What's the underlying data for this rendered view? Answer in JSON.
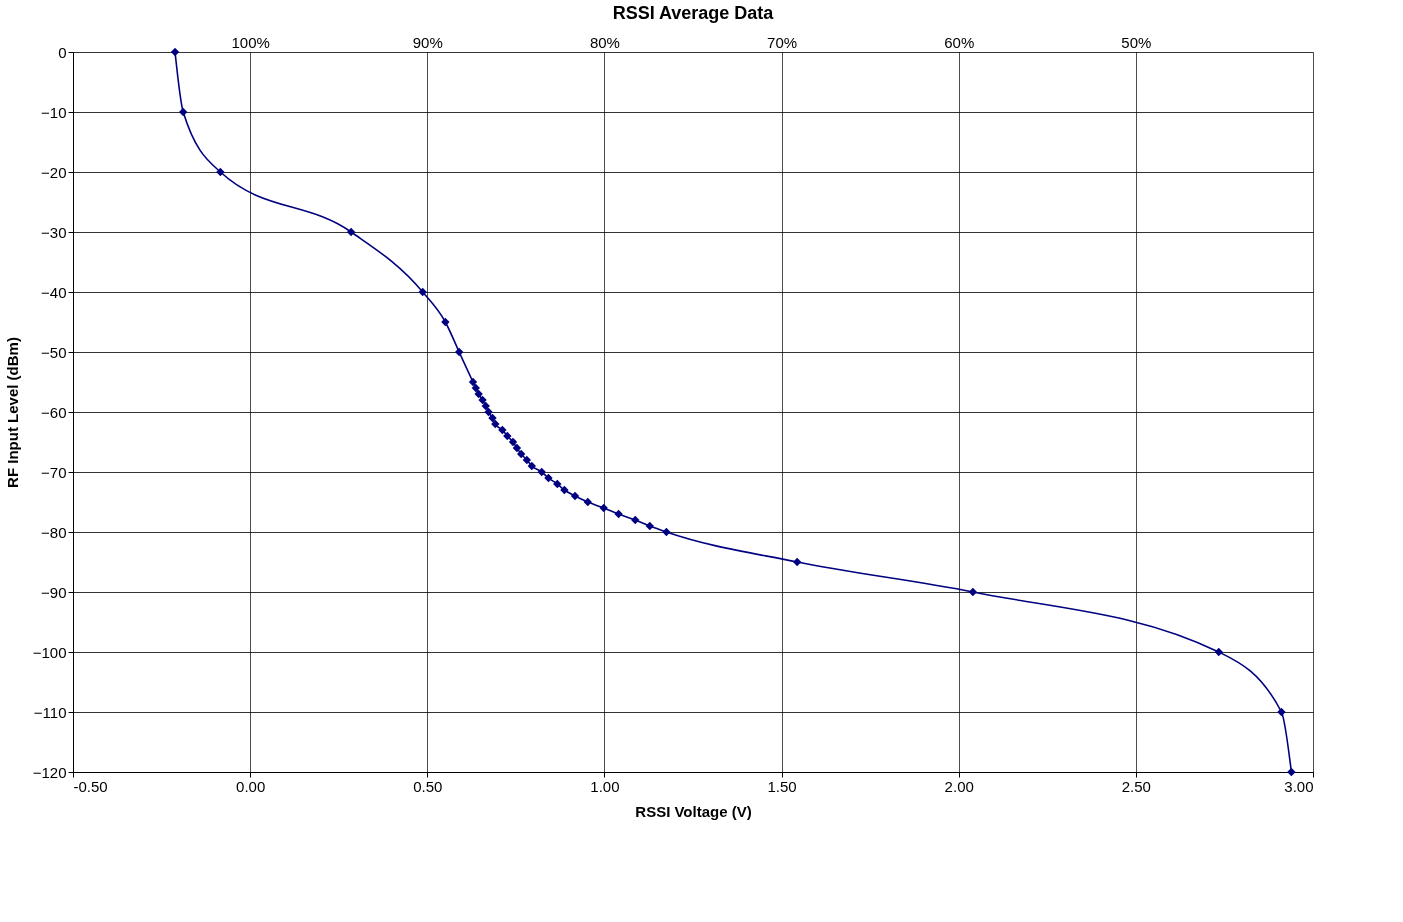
{
  "chart_data": {
    "type": "line",
    "title": "RSSI Average Data",
    "xlabel": "RSSI Voltage (V)",
    "ylabel": "RF Input Level (dBm)",
    "x": [
      -0.212,
      -0.189,
      -0.084,
      0.285,
      0.487,
      0.551,
      0.59,
      0.629,
      0.637,
      0.645,
      0.656,
      0.665,
      0.673,
      0.684,
      0.692,
      0.712,
      0.726,
      0.742,
      0.753,
      0.765,
      0.781,
      0.795,
      0.823,
      0.842,
      0.867,
      0.887,
      0.917,
      0.953,
      0.998,
      1.04,
      1.087,
      1.128,
      1.175,
      1.544,
      2.04,
      2.734,
      2.911,
      2.939
    ],
    "series": [
      {
        "color": "#000080",
        "values": [
          0,
          -10,
          -20,
          -30,
          -40,
          -45,
          -50,
          -55,
          -56,
          -57,
          -58,
          -59,
          -60,
          -61,
          -62,
          -63,
          -64,
          -65,
          -66,
          -67,
          -68,
          -69,
          -70,
          -71,
          -72,
          -73,
          -74,
          -75,
          -76,
          -77,
          -78,
          -79,
          -80,
          -85,
          -90,
          -100,
          -110,
          -120
        ]
      }
    ],
    "xlim": [
      -0.5,
      3.0
    ],
    "xticks": [
      {
        "value": -0.5,
        "label": "-0.50"
      },
      {
        "value": 0,
        "label": "0.00"
      },
      {
        "value": 0.5,
        "label": "0.50"
      },
      {
        "value": 1.0,
        "label": "1.00"
      },
      {
        "value": 1.5,
        "label": "1.50"
      },
      {
        "value": 2.0,
        "label": "2.00"
      },
      {
        "value": 2.5,
        "label": "2.50"
      },
      {
        "value": 3.0,
        "label": "3.00"
      }
    ],
    "x2lim": [
      110,
      40
    ],
    "x2ticks": [
      {
        "value": 100,
        "label": "100%"
      },
      {
        "value": 90,
        "label": "90%"
      },
      {
        "value": 80,
        "label": "80%"
      },
      {
        "value": 70,
        "label": "70%"
      },
      {
        "value": 60,
        "label": "60%"
      },
      {
        "value": 50,
        "label": "50%"
      }
    ],
    "ylim": [
      -120,
      0
    ],
    "yticks": [
      -120,
      -110,
      -100,
      -90,
      -80,
      -70,
      -60,
      -50,
      -40,
      -30,
      -20,
      -10,
      0
    ],
    "grid": true,
    "marker": "diamond",
    "line_style": "solid"
  }
}
